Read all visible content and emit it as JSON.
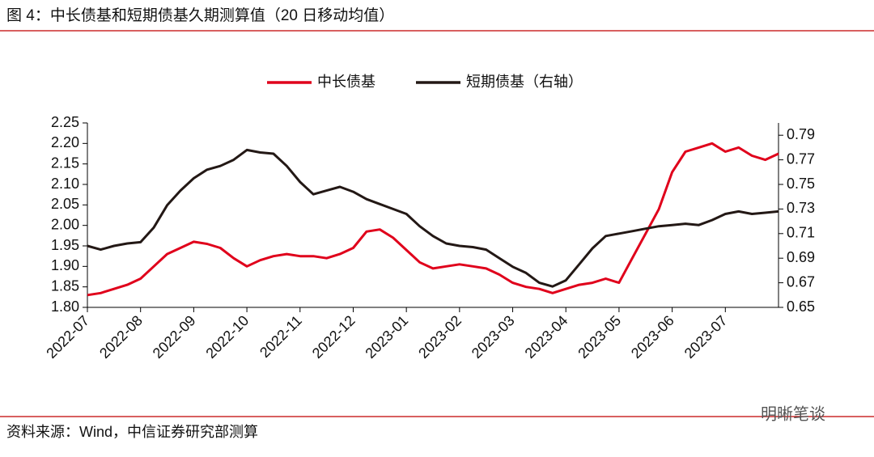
{
  "chart_data": {
    "type": "line",
    "title": "图 4：中长债基和短期债基久期测算值（20 日移动均值）",
    "source": "资料来源：Wind，中信证券研究部测算",
    "watermark": "明晰笔谈",
    "categories": [
      "2022-07",
      null,
      null,
      null,
      "2022-08",
      null,
      null,
      null,
      "2022-09",
      null,
      null,
      null,
      "2022-10",
      null,
      null,
      null,
      "2022-11",
      null,
      null,
      null,
      "2022-12",
      null,
      null,
      null,
      "2023-01",
      null,
      null,
      null,
      "2023-02",
      null,
      null,
      null,
      "2023-03",
      null,
      null,
      null,
      "2023-04",
      null,
      null,
      null,
      "2023-05",
      null,
      null,
      null,
      "2023-06",
      null,
      null,
      null,
      "2023-07",
      null,
      null,
      null,
      null
    ],
    "series": [
      {
        "name": "中长债基",
        "color": "#e0001b",
        "axis": "y",
        "values": [
          1.83,
          1.835,
          1.845,
          1.855,
          1.87,
          1.9,
          1.93,
          1.945,
          1.96,
          1.955,
          1.945,
          1.92,
          1.9,
          1.915,
          1.925,
          1.93,
          1.925,
          1.925,
          1.92,
          1.93,
          1.945,
          1.985,
          1.99,
          1.97,
          1.94,
          1.91,
          1.895,
          1.9,
          1.905,
          1.9,
          1.895,
          1.88,
          1.86,
          1.85,
          1.845,
          1.835,
          1.845,
          1.855,
          1.86,
          1.87,
          1.86,
          1.92,
          1.98,
          2.04,
          2.13,
          2.18,
          2.19,
          2.2,
          2.18,
          2.19,
          2.17,
          2.16,
          2.175
        ]
      },
      {
        "name": "短期债基（右轴）",
        "color": "#231815",
        "axis": "y2",
        "values": [
          0.7,
          0.697,
          0.7,
          0.702,
          0.703,
          0.715,
          0.733,
          0.745,
          0.755,
          0.762,
          0.765,
          0.77,
          0.778,
          0.776,
          0.775,
          0.765,
          0.752,
          0.742,
          0.745,
          0.748,
          0.744,
          0.738,
          0.734,
          0.73,
          0.726,
          0.716,
          0.708,
          0.702,
          0.7,
          0.699,
          0.697,
          0.69,
          0.683,
          0.678,
          0.67,
          0.667,
          0.672,
          0.685,
          0.698,
          0.708,
          0.71,
          0.712,
          0.714,
          0.716,
          0.717,
          0.718,
          0.717,
          0.721,
          0.726,
          0.728,
          0.726,
          0.727,
          0.728
        ]
      }
    ],
    "ylim": [
      1.8,
      2.25
    ],
    "yticks": [
      {
        "value": 1.8,
        "label": "1.80"
      },
      1.85,
      {
        "value": 1.9,
        "label": "1.90"
      },
      1.95,
      {
        "value": 2.0,
        "label": "2.00"
      },
      2.05,
      {
        "value": 2.1,
        "label": "2.10"
      },
      2.15,
      {
        "value": 2.2,
        "label": "2.20"
      },
      2.25
    ],
    "y2lim": [
      0.65,
      0.8
    ],
    "y2ticks": [
      0.65,
      0.67,
      0.69,
      0.71,
      0.73,
      0.75,
      0.77,
      0.79
    ],
    "legend": "top",
    "grid": false
  }
}
